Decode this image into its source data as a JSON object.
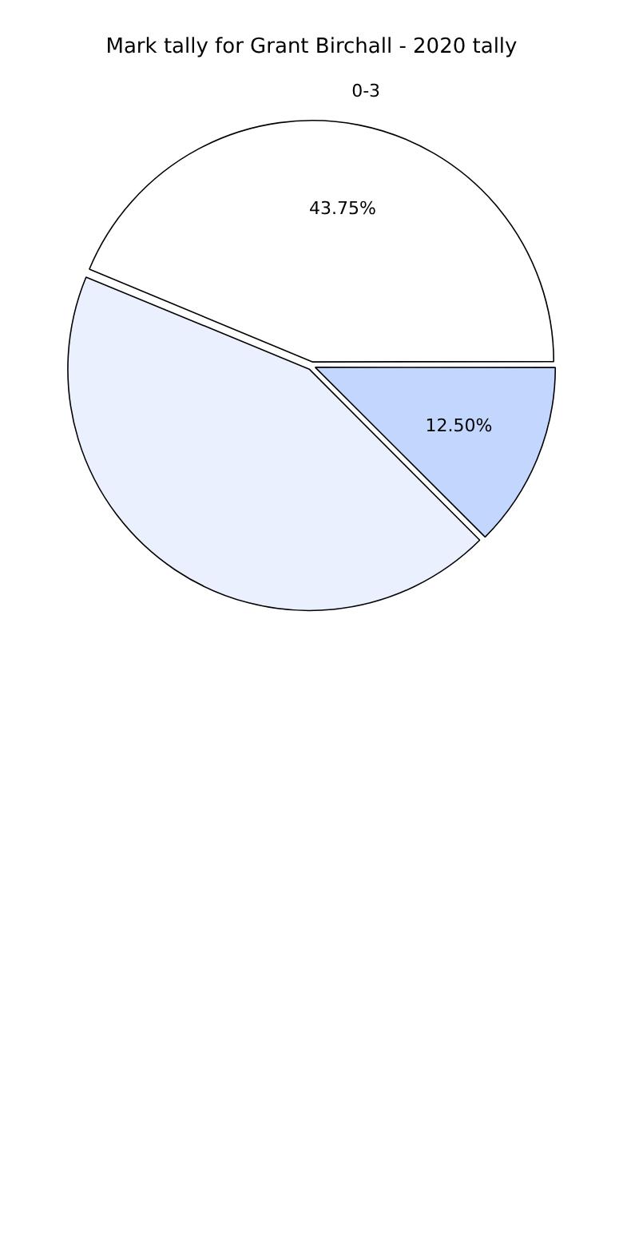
{
  "chart_data": {
    "type": "pie",
    "title": "Mark tally for Grant Birchall - 2020 tally",
    "categories": [
      "0-3",
      null,
      null
    ],
    "values": [
      43.75,
      43.75,
      12.5
    ],
    "colors": [
      "#ffffff",
      "#eaf0fd",
      "#c3d6fe"
    ],
    "value_labels": [
      "43.75%",
      null,
      "12.50%"
    ],
    "legend": false
  }
}
